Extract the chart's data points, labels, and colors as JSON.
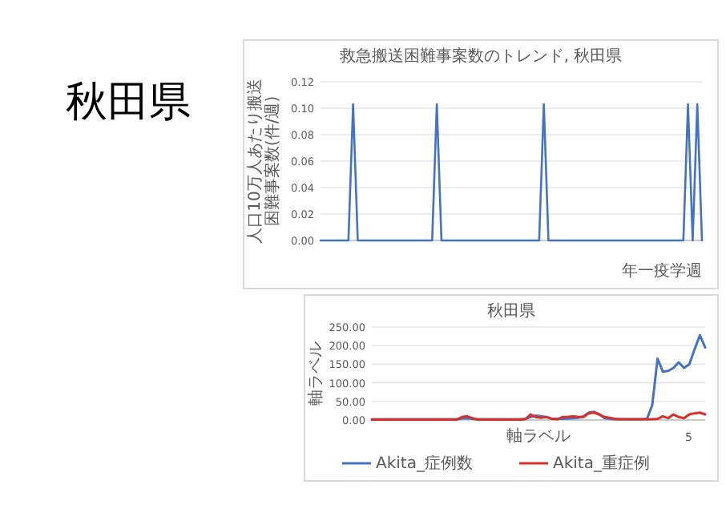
{
  "chart_data": [
    {
      "type": "other",
      "title": "秋田県"
    },
    {
      "type": "line",
      "title": "救急搬送困難事案数のトレンド, 秋田県",
      "ylabel": "人口10万人あたり搬送困難事案数(件/週)",
      "xlabel": "年一疫学週",
      "grid": "y",
      "legend": false,
      "marker": "none",
      "categories": [
        null,
        null,
        null,
        null,
        null,
        null,
        null,
        null,
        null,
        null,
        null,
        null,
        null,
        null,
        null,
        null,
        null,
        null,
        null,
        null,
        null,
        null,
        null,
        null,
        null,
        null,
        null,
        null,
        null,
        null,
        null,
        null,
        null,
        null,
        null,
        null,
        null,
        null,
        null,
        null,
        null,
        null,
        null,
        null,
        null,
        null,
        null,
        null,
        null,
        null,
        null,
        null,
        null,
        null,
        null,
        null,
        null,
        null,
        null,
        null,
        null,
        null,
        null,
        null,
        null,
        null,
        null,
        null,
        null,
        null,
        null,
        null,
        null,
        null,
        null,
        null,
        null,
        null,
        null,
        null,
        null,
        null,
        null
      ],
      "ylim": [
        0,
        0.12
      ],
      "yticks": [
        {
          "value": 0,
          "label": "0.00"
        },
        {
          "value": 0.02,
          "label": "0.02"
        },
        {
          "value": 0.04,
          "label": "0.04"
        },
        {
          "value": 0.06,
          "label": "0.06"
        },
        {
          "value": 0.08,
          "label": "0.08"
        },
        {
          "value": 0.1,
          "label": "0.10"
        },
        {
          "value": 0.12,
          "label": "0.12"
        }
      ],
      "series": [
        {
          "color": "#4472c4",
          "values": [
            0,
            0,
            0,
            0,
            0,
            0,
            0,
            0.103,
            0,
            0,
            0,
            0,
            0,
            0,
            0,
            0,
            0,
            0,
            0,
            0,
            0,
            0,
            0,
            0,
            0,
            0.103,
            0,
            0,
            0,
            0,
            0,
            0,
            0,
            0,
            0,
            0,
            0,
            0,
            0,
            0,
            0,
            0,
            0,
            0,
            0,
            0,
            0,
            0,
            0.103,
            0,
            0,
            0,
            0,
            0,
            0,
            0,
            0,
            0,
            0,
            0,
            0,
            0,
            0,
            0,
            0,
            0,
            0,
            0,
            0,
            0,
            0,
            0,
            0,
            0,
            0,
            0,
            0,
            0,
            0,
            0.103,
            0,
            0.103,
            0
          ]
        }
      ]
    },
    {
      "type": "line",
      "title": "秋田県",
      "ylabel": "軸ラベル",
      "xlabel": "軸ラベル",
      "grid": "y",
      "legend": "bottom",
      "marker": "none",
      "annotations": [
        "5"
      ],
      "categories": [
        null,
        null,
        null,
        null,
        null,
        null,
        null,
        null,
        null,
        null,
        null,
        null,
        null,
        null,
        null,
        null,
        null,
        null,
        null,
        null,
        null,
        null,
        null,
        null,
        null,
        null,
        null,
        null,
        null,
        null,
        null,
        null,
        null,
        null,
        null,
        null,
        null,
        null,
        null,
        null,
        null,
        null,
        null,
        null,
        null,
        null,
        null,
        null,
        null,
        null,
        null,
        null,
        null,
        null,
        null,
        null,
        null,
        null,
        null,
        null,
        null,
        null,
        null,
        null
      ],
      "ylim": [
        0,
        250
      ],
      "yticks": [
        {
          "value": 0,
          "label": "0.00"
        },
        {
          "value": 50,
          "label": "50.00"
        },
        {
          "value": 100,
          "label": "100.00"
        },
        {
          "value": 150,
          "label": "150.00"
        },
        {
          "value": 200,
          "label": "200.00"
        },
        {
          "value": 250,
          "label": "250.00"
        }
      ],
      "series": [
        {
          "name": "Akita_症例数",
          "color": "#4472c4",
          "values": [
            2,
            2,
            2,
            2,
            2,
            2,
            2,
            2,
            2,
            2,
            2,
            2,
            2,
            2,
            2,
            2,
            2,
            4,
            5,
            3,
            2,
            2,
            2,
            2,
            2,
            2,
            2,
            2,
            2,
            3,
            8,
            12,
            10,
            8,
            4,
            3,
            3,
            4,
            5,
            6,
            10,
            20,
            22,
            15,
            5,
            3,
            2,
            2,
            2,
            2,
            2,
            2,
            3,
            40,
            165,
            130,
            132,
            140,
            155,
            140,
            150,
            190,
            228,
            195
          ]
        },
        {
          "name": "Akita_重症例",
          "color": "#d9302a",
          "values": [
            1,
            1,
            1,
            1,
            1,
            1,
            1,
            1,
            1,
            1,
            1,
            1,
            1,
            1,
            1,
            1,
            1,
            8,
            10,
            5,
            1,
            1,
            1,
            1,
            1,
            1,
            1,
            1,
            1,
            2,
            15,
            8,
            6,
            8,
            3,
            2,
            8,
            8,
            10,
            8,
            8,
            18,
            20,
            15,
            8,
            6,
            3,
            2,
            2,
            2,
            2,
            2,
            2,
            2,
            3,
            10,
            5,
            15,
            8,
            5,
            15,
            18,
            20,
            15
          ]
        }
      ]
    }
  ]
}
